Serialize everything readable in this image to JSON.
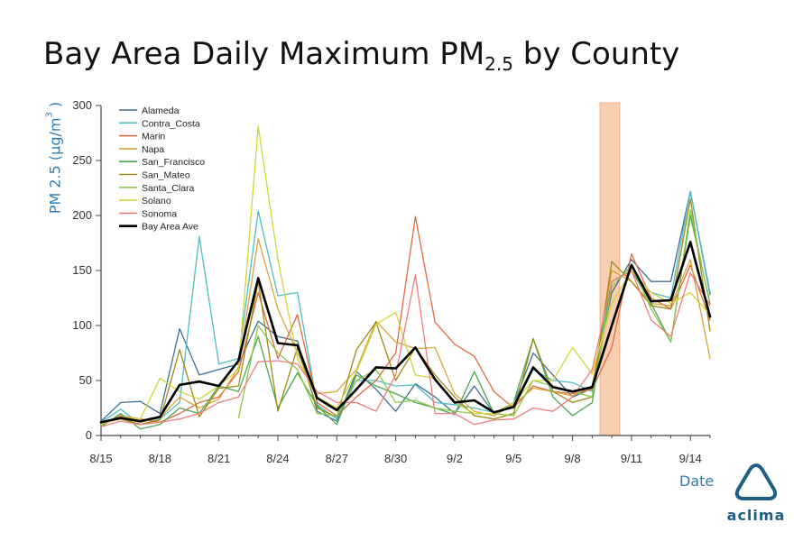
{
  "title": {
    "main": "Bay Area Daily Maximum PM",
    "subscript": "2.5",
    "suffix": " by County"
  },
  "logo": {
    "text": "aclima"
  },
  "chart_data": {
    "type": "line",
    "ylabel_base": "PM 2.5 (μg/m",
    "ylabel_sup": "3",
    "ylabel_close": ")",
    "xlabel": "Date",
    "ylim": [
      0,
      300
    ],
    "yticks": [
      0,
      50,
      100,
      150,
      200,
      250,
      300
    ],
    "x": [
      "8/15",
      "8/16",
      "8/17",
      "8/18",
      "8/19",
      "8/20",
      "8/21",
      "8/22",
      "8/23",
      "8/24",
      "8/25",
      "8/26",
      "8/27",
      "8/28",
      "8/29",
      "8/30",
      "8/31",
      "9/1",
      "9/2",
      "9/3",
      "9/4",
      "9/5",
      "9/6",
      "9/7",
      "9/8",
      "9/9",
      "9/10",
      "9/11",
      "9/12",
      "9/13",
      "9/14",
      "9/15"
    ],
    "xtick_labels": [
      "8/15",
      "8/18",
      "8/21",
      "8/24",
      "8/27",
      "8/30",
      "9/2",
      "9/5",
      "9/8",
      "9/11",
      "9/14"
    ],
    "legend_position": "top-left",
    "highlight": {
      "start_index": 25.4,
      "end_index": 26.4,
      "color": "#f8c9a8"
    },
    "series": [
      {
        "name": "Alameda",
        "color": "#3f6f93",
        "width": 1.3,
        "values": [
          13,
          30,
          31,
          20,
          97,
          55,
          60,
          65,
          104,
          90,
          86,
          22,
          13,
          58,
          42,
          22,
          47,
          35,
          20,
          45,
          20,
          28,
          75,
          55,
          35,
          43,
          130,
          160,
          140,
          140,
          222,
          128
        ]
      },
      {
        "name": "Contra_Costa",
        "color": "#4dbec4",
        "width": 1.3,
        "values": [
          12,
          24,
          10,
          15,
          30,
          181,
          65,
          70,
          204,
          127,
          130,
          28,
          15,
          50,
          50,
          45,
          46,
          30,
          28,
          25,
          21,
          25,
          60,
          50,
          48,
          40,
          140,
          150,
          130,
          125,
          222,
          130
        ]
      },
      {
        "name": "Marin",
        "color": "#e06b3e",
        "width": 1.3,
        "values": [
          10,
          18,
          15,
          12,
          20,
          30,
          35,
          58,
          130,
          70,
          110,
          30,
          18,
          35,
          50,
          75,
          199,
          103,
          83,
          72,
          40,
          25,
          45,
          40,
          38,
          42,
          80,
          165,
          125,
          115,
          155,
          105
        ]
      },
      {
        "name": "Napa",
        "color": "#d9a43a",
        "width": 1.3,
        "values": [
          11,
          15,
          12,
          16,
          35,
          25,
          33,
          62,
          179,
          115,
          75,
          38,
          40,
          60,
          104,
          85,
          79,
          80,
          38,
          22,
          18,
          28,
          43,
          40,
          36,
          45,
          150,
          140,
          120,
          118,
          160,
          70
        ]
      },
      {
        "name": "San_Francisco",
        "color": "#4aa84f",
        "width": 1.3,
        "values": [
          8,
          20,
          6,
          10,
          25,
          20,
          45,
          40,
          90,
          25,
          57,
          27,
          10,
          55,
          45,
          38,
          30,
          25,
          19,
          58,
          20,
          30,
          88,
          35,
          18,
          30,
          140,
          150,
          120,
          85,
          200,
          120
        ]
      },
      {
        "name": "San_Mateo",
        "color": "#9e8b13",
        "width": 1.3,
        "values": [
          12,
          15,
          10,
          14,
          78,
          17,
          43,
          45,
          140,
          22,
          80,
          25,
          17,
          78,
          103,
          50,
          80,
          55,
          35,
          18,
          15,
          20,
          88,
          40,
          30,
          35,
          158,
          140,
          118,
          115,
          215,
          95
        ]
      },
      {
        "name": "Santa_Clara",
        "color": "#8cc64a",
        "width": 1.3,
        "values": [
          null,
          null,
          null,
          null,
          null,
          null,
          null,
          16,
          100,
          75,
          60,
          20,
          18,
          50,
          60,
          30,
          32,
          25,
          22,
          20,
          20,
          18,
          50,
          45,
          40,
          35,
          135,
          155,
          115,
          85,
          205,
          118
        ]
      },
      {
        "name": "Solano",
        "color": "#d2d43a",
        "width": 1.3,
        "values": [
          10,
          17,
          15,
          52,
          40,
          33,
          45,
          60,
          281,
          160,
          70,
          35,
          25,
          58,
          101,
          112,
          55,
          52,
          30,
          20,
          20,
          30,
          50,
          50,
          80,
          56,
          120,
          150,
          130,
          120,
          130,
          110
        ]
      },
      {
        "name": "Sonoma",
        "color": "#f07d7d",
        "width": 1.3,
        "values": [
          8,
          13,
          10,
          12,
          15,
          20,
          30,
          35,
          67,
          68,
          65,
          40,
          30,
          30,
          22,
          55,
          146,
          20,
          20,
          10,
          14,
          15,
          25,
          22,
          35,
          60,
          140,
          150,
          105,
          90,
          148,
          118
        ]
      },
      {
        "name": "Bay Area Ave",
        "color": "#000000",
        "width": 2.6,
        "values": [
          12,
          16,
          13,
          17,
          46,
          49,
          45,
          68,
          143,
          84,
          82,
          34,
          23,
          42,
          62,
          61,
          80,
          51,
          30,
          32,
          21,
          26,
          62,
          44,
          40,
          44,
          100,
          155,
          122,
          123,
          176,
          108
        ]
      }
    ]
  }
}
